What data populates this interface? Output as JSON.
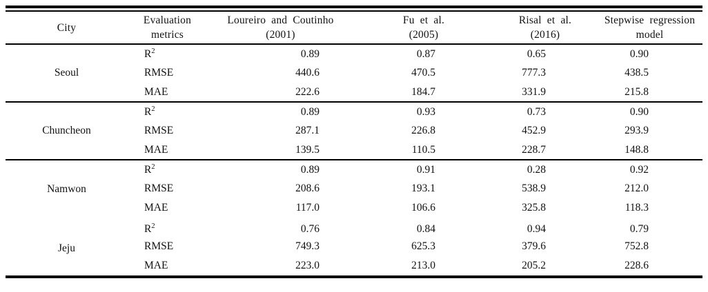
{
  "header": {
    "city": "City",
    "cols": [
      {
        "line1": "Evaluation",
        "line2": "metrics"
      },
      {
        "line1": "Loureiro and Coutinho",
        "line2": "(2001)"
      },
      {
        "line1": "Fu et al.",
        "line2": "(2005)"
      },
      {
        "line1": "Risal et al.",
        "line2": "(2016)"
      },
      {
        "line1": "Stepwise regression",
        "line2": "model"
      }
    ]
  },
  "colors": {
    "text": "#121212",
    "rule": "#000000",
    "background": "#ffffff"
  },
  "cities": [
    {
      "name": "Seoul",
      "rows": [
        {
          "metric_base": "R",
          "metric_sup": "2",
          "values": [
            "0.89",
            "0.87",
            "0.65",
            "0.90"
          ]
        },
        {
          "metric_base": "RMSE",
          "metric_sup": "",
          "values": [
            "440.6",
            "470.5",
            "777.3",
            "438.5"
          ]
        },
        {
          "metric_base": "MAE",
          "metric_sup": "",
          "values": [
            "222.6",
            "184.7",
            "331.9",
            "215.8"
          ]
        }
      ]
    },
    {
      "name": "Chuncheon",
      "rows": [
        {
          "metric_base": "R",
          "metric_sup": "2",
          "values": [
            "0.89",
            "0.93",
            "0.73",
            "0.90"
          ]
        },
        {
          "metric_base": "RMSE",
          "metric_sup": "",
          "values": [
            "287.1",
            "226.8",
            "452.9",
            "293.9"
          ]
        },
        {
          "metric_base": "MAE",
          "metric_sup": "",
          "values": [
            "139.5",
            "110.5",
            "228.7",
            "148.8"
          ]
        }
      ]
    },
    {
      "name": "Namwon",
      "rows": [
        {
          "metric_base": "R",
          "metric_sup": "2",
          "values": [
            "0.89",
            "0.91",
            "0.28",
            "0.92"
          ]
        },
        {
          "metric_base": "RMSE",
          "metric_sup": "",
          "values": [
            "208.6",
            "193.1",
            "538.9",
            "212.0"
          ]
        },
        {
          "metric_base": "MAE",
          "metric_sup": "",
          "values": [
            "117.0",
            "106.6",
            "325.8",
            "118.3"
          ]
        }
      ]
    },
    {
      "name": "Jeju",
      "rows": [
        {
          "metric_base": "R",
          "metric_sup": "2",
          "values": [
            "0.76",
            "0.84",
            "0.94",
            "0.79"
          ]
        },
        {
          "metric_base": "RMSE",
          "metric_sup": "",
          "values": [
            "749.3",
            "625.3",
            "379.6",
            "752.8"
          ]
        },
        {
          "metric_base": "MAE",
          "metric_sup": "",
          "values": [
            "223.0",
            "213.0",
            "205.2",
            "228.6"
          ]
        }
      ]
    }
  ]
}
